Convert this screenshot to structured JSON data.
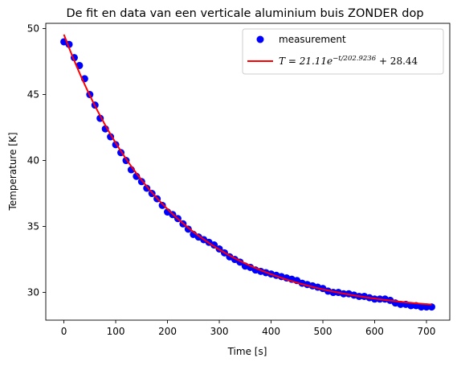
{
  "chart_data": {
    "type": "scatter",
    "title": "De fit en data van een verticale aluminium buis ZONDER dop",
    "xlabel": "Time [s]",
    "ylabel": "Temperature [K]",
    "xlim": [
      -35,
      745
    ],
    "ylim": [
      27.9,
      50.4
    ],
    "xticks": [
      0,
      100,
      200,
      300,
      400,
      500,
      600,
      700
    ],
    "yticks": [
      30,
      35,
      40,
      45,
      50
    ],
    "grid": false,
    "legend_position": "top-right",
    "legend": {
      "measurement_label": "measurement",
      "fit_label_prefix": "T = 21.11e",
      "fit_label_exponent": "−t/202.9236",
      "fit_label_suffix": " + 28.44"
    },
    "colors": {
      "measurement": "#0000ff",
      "fit": "#ff0000"
    },
    "series": [
      {
        "name": "measurement",
        "kind": "scatter",
        "x": [
          0,
          10,
          20,
          30,
          40,
          50,
          60,
          70,
          80,
          90,
          100,
          110,
          120,
          130,
          140,
          150,
          160,
          170,
          180,
          190,
          200,
          210,
          220,
          230,
          240,
          250,
          260,
          270,
          280,
          290,
          300,
          310,
          320,
          330,
          340,
          350,
          360,
          370,
          380,
          390,
          400,
          410,
          420,
          430,
          440,
          450,
          460,
          470,
          480,
          490,
          500,
          510,
          520,
          530,
          540,
          550,
          560,
          570,
          580,
          590,
          600,
          610,
          620,
          630,
          640,
          650,
          660,
          670,
          680,
          690,
          700,
          710
        ],
        "y": [
          49.0,
          48.8,
          47.8,
          47.2,
          46.2,
          45.0,
          44.2,
          43.2,
          42.4,
          41.8,
          41.2,
          40.6,
          40.0,
          39.3,
          38.8,
          38.4,
          37.9,
          37.5,
          37.1,
          36.6,
          36.1,
          35.9,
          35.6,
          35.2,
          34.8,
          34.4,
          34.2,
          34.0,
          33.8,
          33.6,
          33.3,
          33.0,
          32.7,
          32.5,
          32.3,
          32.0,
          31.9,
          31.7,
          31.6,
          31.5,
          31.4,
          31.3,
          31.2,
          31.1,
          31.0,
          30.9,
          30.7,
          30.6,
          30.5,
          30.4,
          30.3,
          30.1,
          30.0,
          30.0,
          29.9,
          29.9,
          29.8,
          29.7,
          29.7,
          29.6,
          29.5,
          29.5,
          29.5,
          29.4,
          29.2,
          29.1,
          29.1,
          29.0,
          29.0,
          28.9,
          28.9,
          28.9
        ]
      },
      {
        "name": "fit",
        "kind": "line",
        "fit_params": {
          "A": 21.11,
          "tau": 202.9236,
          "C": 28.44
        },
        "x_range": [
          0,
          710
        ]
      }
    ]
  }
}
